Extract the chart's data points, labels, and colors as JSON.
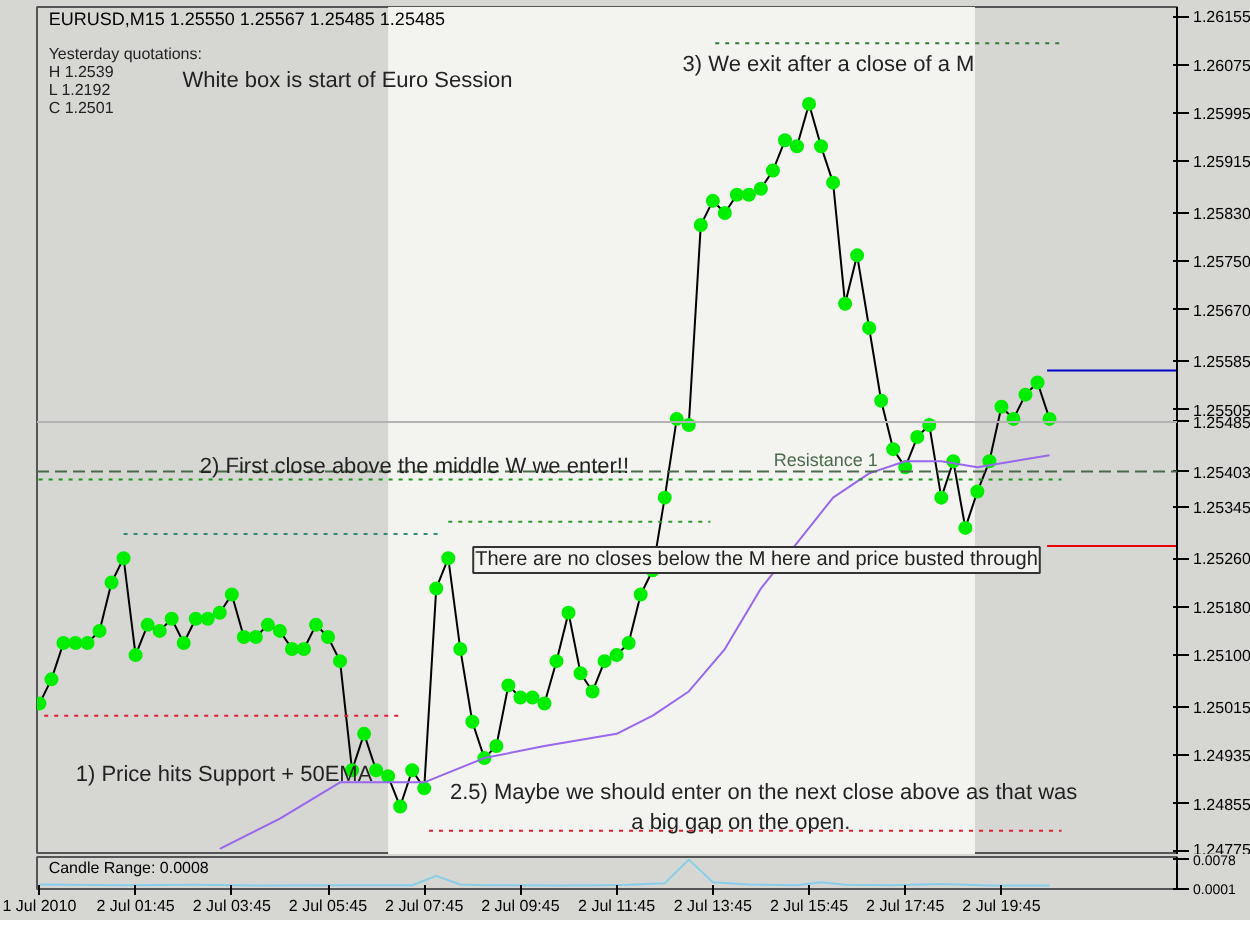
{
  "chart_data": [
    {
      "type": "line",
      "title": "EURUSD,M15  1.25550 1.25567 1.25485 1.25485",
      "xlim": [
        "2010-07-01T23:42",
        "2010-07-02T23:24"
      ],
      "ylim": [
        1.2477,
        1.2617
      ],
      "yticks": [
        1.26155,
        1.26075,
        1.25995,
        1.25915,
        {
          "value": 1.2583,
          "label": "1.25830"
        },
        {
          "value": 1.2575,
          "label": "1.25750"
        },
        {
          "value": 1.2567,
          "label": "1.25670"
        },
        1.25585,
        1.25505,
        1.25485,
        1.25403,
        1.25345,
        {
          "value": 1.2526,
          "label": "1.25260"
        },
        {
          "value": 1.2518,
          "label": "1.25180"
        },
        {
          "value": 1.251,
          "label": "1.25100"
        },
        1.25015,
        1.24935,
        1.24855,
        1.24775
      ],
      "tick_labels": "y",
      "marker": "circle",
      "x": [
        "2010-07-01T23:45",
        "2010-07-02T00:00",
        "2010-07-02T00:15",
        "2010-07-02T00:30",
        "2010-07-02T00:45",
        "2010-07-02T01:00",
        "2010-07-02T01:15",
        "2010-07-02T01:30",
        "2010-07-02T01:45",
        "2010-07-02T02:00",
        "2010-07-02T02:15",
        "2010-07-02T02:30",
        "2010-07-02T02:45",
        "2010-07-02T03:00",
        "2010-07-02T03:15",
        "2010-07-02T03:30",
        "2010-07-02T03:45",
        "2010-07-02T04:00",
        "2010-07-02T04:15",
        "2010-07-02T04:30",
        "2010-07-02T04:45",
        "2010-07-02T05:00",
        "2010-07-02T05:15",
        "2010-07-02T05:30",
        "2010-07-02T05:45",
        "2010-07-02T06:00",
        "2010-07-02T06:15",
        "2010-07-02T06:30",
        "2010-07-02T06:45",
        "2010-07-02T07:00",
        "2010-07-02T07:15",
        "2010-07-02T07:30",
        "2010-07-02T07:45",
        "2010-07-02T08:00",
        "2010-07-02T08:15",
        "2010-07-02T08:30",
        "2010-07-02T08:45",
        "2010-07-02T09:00",
        "2010-07-02T09:15",
        "2010-07-02T09:30",
        "2010-07-02T09:45",
        "2010-07-02T10:00",
        "2010-07-02T10:15",
        "2010-07-02T10:30",
        "2010-07-02T10:45",
        "2010-07-02T11:00",
        "2010-07-02T11:15",
        "2010-07-02T11:30",
        "2010-07-02T11:45",
        "2010-07-02T12:00",
        "2010-07-02T12:15",
        "2010-07-02T12:30",
        "2010-07-02T12:45",
        "2010-07-02T13:00",
        "2010-07-02T13:15",
        "2010-07-02T13:30",
        "2010-07-02T13:45",
        "2010-07-02T14:00",
        "2010-07-02T14:15",
        "2010-07-02T14:30",
        "2010-07-02T14:45",
        "2010-07-02T15:00",
        "2010-07-02T15:15",
        "2010-07-02T15:30",
        "2010-07-02T15:45",
        "2010-07-02T16:00",
        "2010-07-02T16:15",
        "2010-07-02T16:30",
        "2010-07-02T16:45",
        "2010-07-02T17:00",
        "2010-07-02T17:15",
        "2010-07-02T17:30",
        "2010-07-02T17:45",
        "2010-07-02T18:00",
        "2010-07-02T18:15",
        "2010-07-02T18:30",
        "2010-07-02T18:45",
        "2010-07-02T19:00",
        "2010-07-02T19:15",
        "2010-07-02T19:30",
        "2010-07-02T19:45",
        "2010-07-02T20:00",
        "2010-07-02T20:15",
        "2010-07-02T20:30",
        "2010-07-02T20:45"
      ],
      "bands": [
        {
          "axis": "x",
          "from": "2010-07-02T07:00",
          "to": "2010-07-02T19:12",
          "color": "#f3f4f0"
        }
      ],
      "ref_lines": [
        {
          "axis": "y",
          "value": 1.25485,
          "color": "#b4b4b4",
          "line_style": "solid"
        },
        {
          "axis": "y",
          "value": 1.25403,
          "label": "Resistance 1",
          "color": "#4a6a4a",
          "line_style": "dashed"
        }
      ],
      "series": [
        {
          "color": "#000000",
          "marker": "circle",
          "colors": [
            "#00ee00",
            "#00ee00",
            "#00ee00",
            "#00ee00",
            "#00ee00",
            "#00ee00",
            "#00ee00",
            "#00ee00",
            "#00ee00",
            "#00ee00",
            "#00ee00",
            "#00ee00",
            "#00ee00",
            "#00ee00",
            "#00ee00",
            "#00ee00",
            "#00ee00",
            "#00ee00",
            "#00ee00",
            "#00ee00",
            "#00ee00",
            "#00ee00",
            "#00ee00",
            "#00ee00",
            "#00ee00",
            "#00ee00",
            "#00ee00",
            "#00ee00",
            "#00ee00",
            "#00ee00",
            "#00ee00",
            "#00ee00",
            "#00ee00",
            "#00ee00",
            "#00ee00",
            "#00ee00",
            "#00ee00",
            "#00ee00",
            "#00ee00",
            "#00ee00",
            "#00ee00",
            "#00ee00",
            "#00ee00",
            "#00ee00",
            "#00ee00",
            "#00ee00",
            "#00ee00",
            "#00ee00",
            "#00ee00",
            "#00ee00",
            "#00ee00",
            "#00ee00",
            "#00ee00",
            "#00ee00",
            "#00ee00",
            "#00ee00",
            "#00ee00",
            "#00ee00",
            "#00ee00",
            "#00ee00",
            "#00ee00",
            "#00ee00",
            "#00ee00",
            "#00ee00",
            "#00ee00",
            "#00ee00",
            "#00ee00",
            "#00ee00",
            "#00ee00",
            "#00ee00",
            "#00ee00",
            "#00ee00",
            "#00ee00",
            "#00ee00",
            "#00ee00",
            "#00ee00",
            "#00ee00",
            "#00ee00",
            "#00ee00",
            "#00ee00",
            "#00ee00",
            "#00ee00",
            "#00ee00",
            "#00ee00",
            "#00ee00"
          ],
          "values": [
            1.2502,
            1.2506,
            1.2512,
            1.2512,
            1.2512,
            1.2514,
            1.2522,
            1.2526,
            1.251,
            1.2515,
            1.2514,
            1.2516,
            1.2512,
            1.2516,
            1.2516,
            1.2517,
            1.252,
            1.2513,
            1.2513,
            1.2515,
            1.2514,
            1.2511,
            1.2511,
            1.2515,
            1.2513,
            1.2509,
            1.2491,
            1.2497,
            1.2491,
            1.249,
            1.2485,
            1.2491,
            1.2488,
            1.2521,
            1.2526,
            1.2511,
            1.2499,
            1.2493,
            1.2495,
            1.2505,
            1.2503,
            1.2503,
            1.2502,
            1.2509,
            1.2517,
            1.2507,
            1.2504,
            1.2509,
            1.251,
            1.2512,
            1.252,
            1.2524,
            1.2536,
            1.2549,
            1.2548,
            1.2581,
            1.2585,
            1.2583,
            1.2586,
            1.2586,
            1.2587,
            1.259,
            1.2595,
            1.2594,
            1.2601,
            1.2594,
            1.2588,
            1.2568,
            1.2576,
            1.2564,
            1.2552,
            1.2544,
            1.2541,
            1.2546,
            1.2548,
            1.2536,
            1.2542,
            1.2531,
            1.2537,
            1.2542,
            1.2551,
            1.2549,
            1.2553,
            1.2555,
            1.2549
          ]
        },
        {
          "color": "#9966ee",
          "marker": "none",
          "x": [
            "2010-07-02T03:30",
            "2010-07-02T04:45",
            "2010-07-02T06:00",
            "2010-07-02T07:45",
            "2010-07-02T09:00",
            "2010-07-02T10:15",
            "2010-07-02T11:45",
            "2010-07-02T12:30",
            "2010-07-02T13:15",
            "2010-07-02T14:00",
            "2010-07-02T14:45",
            "2010-07-02T15:45",
            "2010-07-02T16:15",
            "2010-07-02T17:00",
            "2010-07-02T17:45",
            "2010-07-02T18:30",
            "2010-07-02T19:15",
            "2010-07-02T20:00",
            "2010-07-02T20:45"
          ],
          "values": [
            1.2478,
            1.2483,
            1.2489,
            1.2489,
            1.2493,
            1.2495,
            1.2497,
            1.25,
            1.2504,
            1.2511,
            1.2521,
            1.2531,
            1.2536,
            1.254,
            1.2542,
            1.2542,
            1.2541,
            1.2542,
            1.2543
          ]
        },
        {
          "color": "#e02030",
          "line_style": "dotted",
          "marker": "none",
          "x": [
            "2010-07-01T23:51",
            "2010-07-02T07:18"
          ],
          "values": [
            1.25,
            1.25
          ]
        },
        {
          "color": "#2e8b7a",
          "line_style": "dotted",
          "marker": "none",
          "x": [
            "2010-07-02T01:30",
            "2010-07-02T08:06"
          ],
          "values": [
            1.253,
            1.253
          ]
        },
        {
          "color": "#2e9a2e",
          "line_style": "dotted",
          "marker": "none",
          "x": [
            "2010-07-02T08:15",
            "2010-07-02T13:42"
          ],
          "values": [
            1.2532,
            1.2532
          ]
        },
        {
          "color": "#1a9a1a",
          "line_style": "dotted",
          "marker": "none",
          "x": [
            "2010-07-01T23:44",
            "2010-07-02T21:00"
          ],
          "values": [
            1.2539,
            1.2539
          ]
        },
        {
          "color": "#e02030",
          "line_style": "dotted",
          "marker": "none",
          "x": [
            "2010-07-02T07:51",
            "2010-07-02T21:00"
          ],
          "values": [
            1.2481,
            1.2481
          ]
        },
        {
          "color": "#2e7d32",
          "line_style": "dotted",
          "marker": "none",
          "x": [
            "2010-07-02T13:48",
            "2010-07-02T21:00"
          ],
          "values": [
            1.2611,
            1.2611
          ]
        },
        {
          "color": "#0000cc",
          "line_style": "solid",
          "marker": "none",
          "x": [
            "2010-07-02T20:42",
            "2010-07-02T23:24"
          ],
          "values": [
            1.2557,
            1.2557
          ]
        },
        {
          "color": "#ee0000",
          "line_style": "solid",
          "marker": "none",
          "x": [
            "2010-07-02T20:42",
            "2010-07-02T23:24"
          ],
          "values": [
            1.2528,
            1.2528
          ]
        }
      ],
      "annotations": [
        "Yesterday quotations:",
        "H 1.2539",
        "L 1.2192",
        "C 1.2501",
        "White box is start of Euro Session",
        "3) We exit after a close of a M",
        "2) First close above the middle W we enter!!",
        "There are no closes below the M here and price busted through",
        "1) Price hits Support + 50EMA",
        "2.5) Maybe we should enter on the next close above as that was a big gap on the open."
      ]
    },
    {
      "type": "line",
      "title": "Candle Range: 0.0008",
      "xlim": [
        "2010-07-01T23:42",
        "2010-07-02T23:24"
      ],
      "ylim": [
        0,
        0.0085
      ],
      "yticks": [
        0.0078,
        0.0001
      ],
      "xticks": [
        {
          "value": "2010-07-01T23:45",
          "label": "1 Jul 2010"
        },
        {
          "value": "2010-07-02T01:45",
          "label": "2 Jul 01:45"
        },
        {
          "value": "2010-07-02T03:45",
          "label": "2 Jul 03:45"
        },
        {
          "value": "2010-07-02T05:45",
          "label": "2 Jul 05:45"
        },
        {
          "value": "2010-07-02T07:45",
          "label": "2 Jul 07:45"
        },
        {
          "value": "2010-07-02T09:45",
          "label": "2 Jul 09:45"
        },
        {
          "value": "2010-07-02T11:45",
          "label": "2 Jul 11:45"
        },
        {
          "value": "2010-07-02T13:45",
          "label": "2 Jul 13:45"
        },
        {
          "value": "2010-07-02T15:45",
          "label": "2 Jul 15:45"
        },
        {
          "value": "2010-07-02T17:45",
          "label": "2 Jul 17:45"
        },
        {
          "value": "2010-07-02T19:45",
          "label": "2 Jul 19:45"
        }
      ],
      "marker": "none",
      "x": [
        "2010-07-01T23:45",
        "2010-07-02T01:30",
        "2010-07-02T03:00",
        "2010-07-02T04:30",
        "2010-07-02T06:00",
        "2010-07-02T07:30",
        "2010-07-02T08:00",
        "2010-07-02T08:30",
        "2010-07-02T09:00",
        "2010-07-02T10:30",
        "2010-07-02T11:30",
        "2010-07-02T12:00",
        "2010-07-02T12:45",
        "2010-07-02T13:15",
        "2010-07-02T13:45",
        "2010-07-02T14:30",
        "2010-07-02T15:30",
        "2010-07-02T16:00",
        "2010-07-02T16:30",
        "2010-07-02T17:30",
        "2010-07-02T18:30",
        "2010-07-02T19:30",
        "2010-07-02T20:45"
      ],
      "series": [
        {
          "color": "#87ceeb",
          "values": [
            0.0012,
            0.001,
            0.0011,
            0.0009,
            0.001,
            0.001,
            0.0035,
            0.0012,
            0.001,
            0.0009,
            0.001,
            0.0011,
            0.0015,
            0.0078,
            0.0018,
            0.0012,
            0.001,
            0.0018,
            0.0011,
            0.001,
            0.0013,
            0.0009,
            0.0009
          ]
        }
      ]
    }
  ]
}
